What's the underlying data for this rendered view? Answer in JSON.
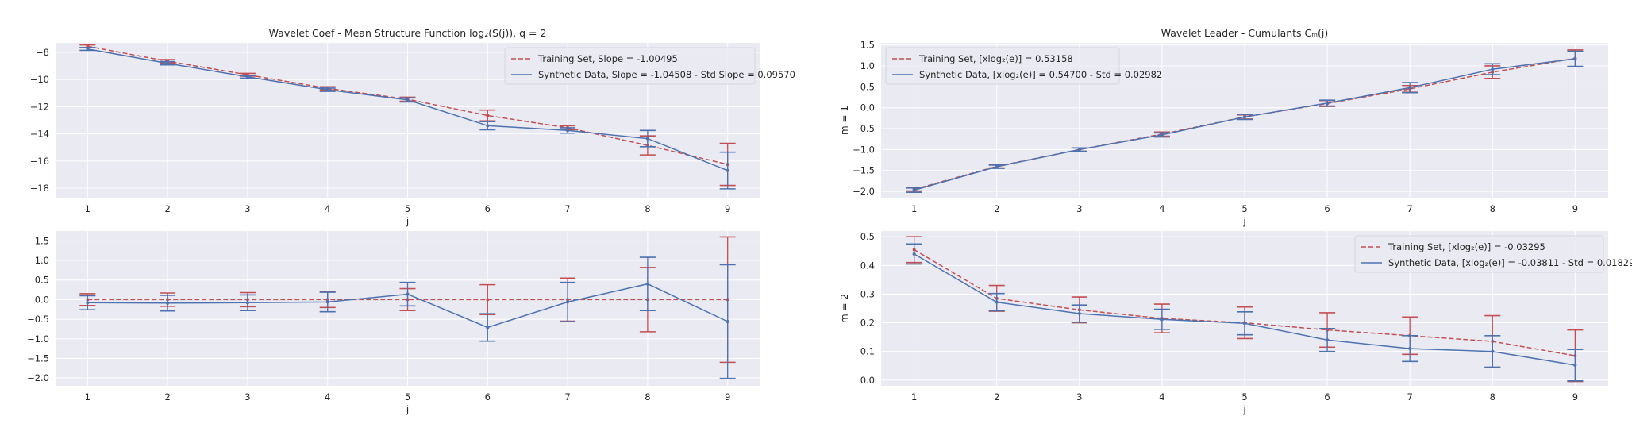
{
  "chart_data": [
    {
      "type": "line",
      "title": "Wavelet Coef - Mean Structure Function log₂(S(j)), q = 2",
      "xlabel": "j",
      "ylabel": "",
      "x": [
        1,
        2,
        3,
        4,
        5,
        6,
        7,
        8,
        9
      ],
      "xlim": [
        0.6,
        9.4
      ],
      "ylim": [
        -18.7,
        -7.3
      ],
      "yticks": [
        -8,
        -10,
        -12,
        -14,
        -16,
        -18
      ],
      "ytick_labels": [
        "−8",
        "−10",
        "−12",
        "−14",
        "−16",
        "−18"
      ],
      "grid": true,
      "legend_position": "top-right",
      "series": [
        {
          "name": "Training Set, Slope = -1.00495",
          "color": "#c44e52",
          "style": "dashed",
          "values": [
            -7.55,
            -8.65,
            -9.65,
            -10.65,
            -11.45,
            -12.65,
            -13.55,
            -14.85,
            -16.25
          ],
          "err": [
            0.1,
            0.12,
            0.1,
            0.12,
            0.15,
            0.4,
            0.15,
            0.7,
            1.55
          ]
        },
        {
          "name": "Synthetic Data, Slope = -1.04508 - Std Slope = 0.09570",
          "color": "#4c72b0",
          "style": "solid",
          "values": [
            -7.75,
            -8.8,
            -9.8,
            -10.75,
            -11.5,
            -13.4,
            -13.75,
            -14.35,
            -16.7
          ],
          "err": [
            0.1,
            0.12,
            0.1,
            0.12,
            0.15,
            0.3,
            0.2,
            0.6,
            1.35
          ]
        }
      ]
    },
    {
      "type": "line",
      "title": "Wavelet Leader - Cumulants Cₘ(j)",
      "xlabel": "j",
      "ylabel": "m = 1",
      "x": [
        1,
        2,
        3,
        4,
        5,
        6,
        7,
        8,
        9
      ],
      "xlim": [
        0.6,
        9.4
      ],
      "ylim": [
        -2.15,
        1.55
      ],
      "yticks": [
        1.5,
        1.0,
        0.5,
        0.0,
        -0.5,
        -1.0,
        -1.5,
        -2.0
      ],
      "ytick_labels": [
        "1.5",
        "1.0",
        "0.5",
        "0.0",
        "−0.5",
        "−1.0",
        "−1.5",
        "−2.0"
      ],
      "grid": true,
      "legend_position": "top-left",
      "series": [
        {
          "name": "Training Set, [xlog₂(e)] = 0.53158",
          "color": "#c44e52",
          "style": "dashed",
          "values": [
            -1.95,
            -1.4,
            -1.0,
            -0.63,
            -0.22,
            0.1,
            0.45,
            0.85,
            1.18
          ],
          "err": [
            0.04,
            0.04,
            0.04,
            0.05,
            0.05,
            0.07,
            0.08,
            0.15,
            0.2
          ]
        },
        {
          "name": "Synthetic Data, [xlog₂(e)] = 0.54700 - Std = 0.02982",
          "color": "#4c72b0",
          "style": "solid",
          "values": [
            -1.97,
            -1.41,
            -1.0,
            -0.65,
            -0.22,
            0.11,
            0.48,
            0.92,
            1.17
          ],
          "err": [
            0.05,
            0.04,
            0.04,
            0.05,
            0.06,
            0.07,
            0.12,
            0.13,
            0.18
          ]
        }
      ]
    },
    {
      "type": "line",
      "title": "",
      "xlabel": "j",
      "ylabel": "",
      "x": [
        1,
        2,
        3,
        4,
        5,
        6,
        7,
        8,
        9
      ],
      "xlim": [
        0.6,
        9.4
      ],
      "ylim": [
        -2.2,
        1.75
      ],
      "yticks": [
        1.5,
        1.0,
        0.5,
        0.0,
        -0.5,
        -1.0,
        -1.5,
        -2.0
      ],
      "ytick_labels": [
        "1.5",
        "1.0",
        "0.5",
        "0.0",
        "−0.5",
        "−1.0",
        "−1.5",
        "−2.0"
      ],
      "grid": true,
      "legend_position": "",
      "series": [
        {
          "name": "",
          "color": "#c44e52",
          "style": "dashed",
          "values": [
            0,
            0,
            0,
            0,
            0,
            0,
            0,
            0,
            0
          ],
          "err": [
            0.15,
            0.17,
            0.18,
            0.2,
            0.28,
            0.38,
            0.55,
            0.82,
            1.6
          ]
        },
        {
          "name": "",
          "color": "#4c72b0",
          "style": "solid",
          "values": [
            -0.08,
            -0.09,
            -0.08,
            -0.06,
            0.14,
            -0.71,
            -0.06,
            0.4,
            -0.56
          ],
          "err": [
            0.18,
            0.2,
            0.2,
            0.25,
            0.3,
            0.35,
            0.5,
            0.68,
            1.45
          ]
        }
      ]
    },
    {
      "type": "line",
      "title": "",
      "xlabel": "j",
      "ylabel": "m = 2",
      "x": [
        1,
        2,
        3,
        4,
        5,
        6,
        7,
        8,
        9
      ],
      "xlim": [
        0.6,
        9.4
      ],
      "ylim": [
        -0.02,
        0.52
      ],
      "yticks": [
        0.5,
        0.4,
        0.3,
        0.2,
        0.1,
        0.0
      ],
      "ytick_labels": [
        "0.5",
        "0.4",
        "0.3",
        "0.2",
        "0.1",
        "0.0"
      ],
      "grid": true,
      "legend_position": "top-right",
      "series": [
        {
          "name": "Training Set, [xlog₂(e)] = -0.03295",
          "color": "#c44e52",
          "style": "dashed",
          "values": [
            0.455,
            0.285,
            0.245,
            0.215,
            0.2,
            0.175,
            0.155,
            0.135,
            0.085
          ],
          "err": [
            0.045,
            0.045,
            0.045,
            0.05,
            0.055,
            0.06,
            0.065,
            0.09,
            0.09
          ]
        },
        {
          "name": "Synthetic Data, [xlog₂(e)] = -0.03811 - Std = 0.01829",
          "color": "#4c72b0",
          "style": "solid",
          "values": [
            0.44,
            0.272,
            0.232,
            0.212,
            0.198,
            0.14,
            0.11,
            0.1,
            0.052
          ],
          "err": [
            0.035,
            0.03,
            0.03,
            0.035,
            0.04,
            0.04,
            0.045,
            0.055,
            0.055
          ]
        }
      ]
    }
  ]
}
